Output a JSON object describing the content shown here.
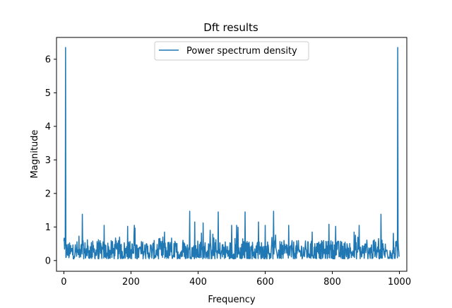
{
  "chart_data": {
    "type": "line",
    "title": "Dft results",
    "xlabel": "Frequency",
    "ylabel": "Magnitude",
    "xlim": [
      -22,
      1022
    ],
    "ylim": [
      -0.32,
      6.65
    ],
    "xticks": [
      0,
      200,
      400,
      600,
      800,
      1000
    ],
    "yticks": [
      0,
      1,
      2,
      3,
      4,
      5,
      6
    ],
    "xtick_labels": [
      "0",
      "200",
      "400",
      "600",
      "800",
      "1000"
    ],
    "ytick_labels": [
      "0",
      "1",
      "2",
      "3",
      "4",
      "5",
      "6"
    ],
    "legend": {
      "placement": "upper center",
      "entries": [
        "Power spectrum density"
      ]
    },
    "grid": false,
    "series": [
      {
        "name": "Power spectrum density",
        "color": "#1f77b4",
        "n_points": 1000,
        "x_range": [
          0,
          999
        ],
        "peaks": [
          {
            "x": 5,
            "y": 6.35
          },
          {
            "x": 995,
            "y": 6.35
          },
          {
            "x": 55,
            "y": 1.38
          },
          {
            "x": 120,
            "y": 1.05
          },
          {
            "x": 190,
            "y": 1.02
          },
          {
            "x": 210,
            "y": 1.05
          },
          {
            "x": 300,
            "y": 0.85
          },
          {
            "x": 375,
            "y": 1.47
          },
          {
            "x": 390,
            "y": 1.15
          },
          {
            "x": 415,
            "y": 1.12
          },
          {
            "x": 460,
            "y": 1.45
          },
          {
            "x": 500,
            "y": 1.05
          },
          {
            "x": 515,
            "y": 1.05
          },
          {
            "x": 540,
            "y": 1.45
          },
          {
            "x": 580,
            "y": 1.15
          },
          {
            "x": 600,
            "y": 1.05
          },
          {
            "x": 625,
            "y": 1.47
          },
          {
            "x": 670,
            "y": 1.05
          },
          {
            "x": 740,
            "y": 0.85
          },
          {
            "x": 790,
            "y": 1.08
          },
          {
            "x": 810,
            "y": 1.02
          },
          {
            "x": 880,
            "y": 1.05
          },
          {
            "x": 945,
            "y": 1.38
          }
        ],
        "baseline_range": [
          0.05,
          0.6
        ]
      }
    ]
  }
}
